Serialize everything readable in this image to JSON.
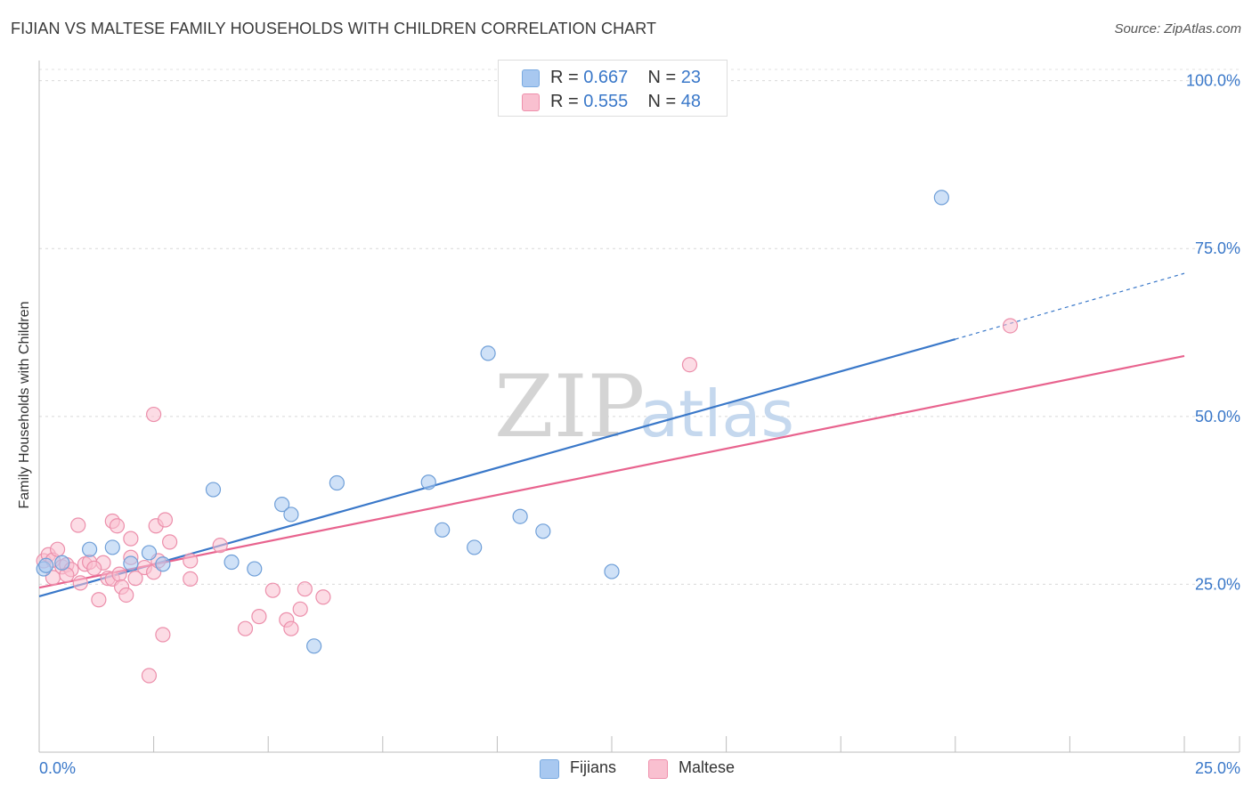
{
  "title": "FIJIAN VS MALTESE FAMILY HOUSEHOLDS WITH CHILDREN CORRELATION CHART",
  "source": "Source: ZipAtlas.com",
  "watermark": {
    "zip": "ZIP",
    "atlas": "atlas"
  },
  "legend_top": [
    {
      "name": "fijians",
      "r_label": "R =",
      "r": "0.667",
      "n_label": "N =",
      "n": "23",
      "color": "#a8c8f0",
      "border": "#7aaae0"
    },
    {
      "name": "maltese",
      "r_label": "R =",
      "r": "0.555",
      "n_label": "N =",
      "n": "48",
      "color": "#f9c0d0",
      "border": "#ef90ac"
    }
  ],
  "legend_bottom": [
    {
      "label": "Fijians",
      "color": "#a8c8f0",
      "border": "#7aaae0"
    },
    {
      "label": "Maltese",
      "color": "#f9c0d0",
      "border": "#ef90ac"
    }
  ],
  "chart_data": {
    "type": "scatter",
    "title": "FIJIAN VS MALTESE FAMILY HOUSEHOLDS WITH CHILDREN CORRELATION CHART",
    "xlabel": "",
    "ylabel": "Family Households with Children",
    "xlim": [
      0,
      25
    ],
    "ylim": [
      0,
      103
    ],
    "x_tick_labels": [
      {
        "value": 0,
        "label": "0.0%"
      },
      {
        "value": 25,
        "label": "25.0%"
      }
    ],
    "y_tick_labels": [
      {
        "value": 25,
        "label": "25.0%"
      },
      {
        "value": 50,
        "label": "50.0%"
      },
      {
        "value": 75,
        "label": "75.0%"
      },
      {
        "value": 100,
        "label": "100.0%"
      }
    ],
    "y_gridlines": [
      25,
      50,
      75,
      100
    ],
    "x_minor_ticks": [
      2.5,
      5,
      7.5,
      10,
      12.5,
      15,
      17.5,
      20,
      22.5
    ],
    "series": [
      {
        "name": "Fijians",
        "color": "#3a78c9",
        "fill": "#a8c8f0",
        "trend": {
          "x0": 0,
          "y0": 23.2,
          "x1": 20,
          "y1": 61.5,
          "dashed_to_x": 25,
          "dashed_to_y": 71.3
        },
        "points": [
          [
            0.1,
            27.3
          ],
          [
            1.1,
            30.2
          ],
          [
            1.6,
            30.5
          ],
          [
            2.0,
            28.1
          ],
          [
            2.4,
            29.7
          ],
          [
            2.7,
            28.0
          ],
          [
            3.8,
            39.1
          ],
          [
            4.2,
            28.3
          ],
          [
            4.7,
            27.3
          ],
          [
            5.3,
            36.9
          ],
          [
            5.5,
            35.4
          ],
          [
            6.0,
            15.8
          ],
          [
            6.5,
            40.1
          ],
          [
            8.5,
            40.2
          ],
          [
            8.8,
            33.1
          ],
          [
            9.5,
            30.5
          ],
          [
            9.8,
            59.4
          ],
          [
            10.5,
            35.1
          ],
          [
            11.0,
            32.9
          ],
          [
            12.5,
            26.9
          ],
          [
            19.7,
            82.6
          ],
          [
            0.15,
            27.8
          ],
          [
            0.5,
            28.2
          ]
        ]
      },
      {
        "name": "Maltese",
        "color": "#e8638e",
        "fill": "#f9c0d0",
        "trend": {
          "x0": 0,
          "y0": 24.5,
          "x1": 25,
          "y1": 59.0
        },
        "points": [
          [
            0.1,
            28.5
          ],
          [
            0.2,
            29.4
          ],
          [
            0.3,
            28.6
          ],
          [
            0.4,
            30.2
          ],
          [
            0.5,
            27.6
          ],
          [
            0.6,
            27.9
          ],
          [
            0.7,
            27.2
          ],
          [
            0.9,
            25.2
          ],
          [
            0.85,
            33.8
          ],
          [
            1.0,
            28.0
          ],
          [
            1.1,
            28.3
          ],
          [
            1.3,
            22.7
          ],
          [
            1.4,
            28.2
          ],
          [
            1.5,
            25.9
          ],
          [
            1.6,
            25.8
          ],
          [
            1.6,
            34.4
          ],
          [
            1.7,
            33.7
          ],
          [
            1.75,
            26.5
          ],
          [
            1.8,
            24.6
          ],
          [
            1.9,
            23.4
          ],
          [
            2.0,
            31.8
          ],
          [
            2.0,
            29.0
          ],
          [
            2.1,
            25.9
          ],
          [
            2.3,
            27.5
          ],
          [
            2.4,
            11.4
          ],
          [
            2.5,
            26.8
          ],
          [
            2.5,
            50.3
          ],
          [
            2.55,
            33.7
          ],
          [
            2.6,
            28.5
          ],
          [
            2.7,
            17.5
          ],
          [
            2.75,
            34.6
          ],
          [
            2.85,
            31.3
          ],
          [
            3.3,
            25.8
          ],
          [
            3.3,
            28.5
          ],
          [
            3.95,
            30.8
          ],
          [
            4.5,
            18.4
          ],
          [
            4.8,
            20.2
          ],
          [
            5.1,
            24.1
          ],
          [
            5.4,
            19.7
          ],
          [
            5.5,
            18.4
          ],
          [
            5.7,
            21.3
          ],
          [
            5.8,
            24.3
          ],
          [
            6.2,
            23.1
          ],
          [
            14.2,
            57.7
          ],
          [
            21.2,
            63.5
          ],
          [
            0.3,
            26.0
          ],
          [
            0.6,
            26.4
          ],
          [
            1.2,
            27.4
          ]
        ]
      }
    ]
  }
}
